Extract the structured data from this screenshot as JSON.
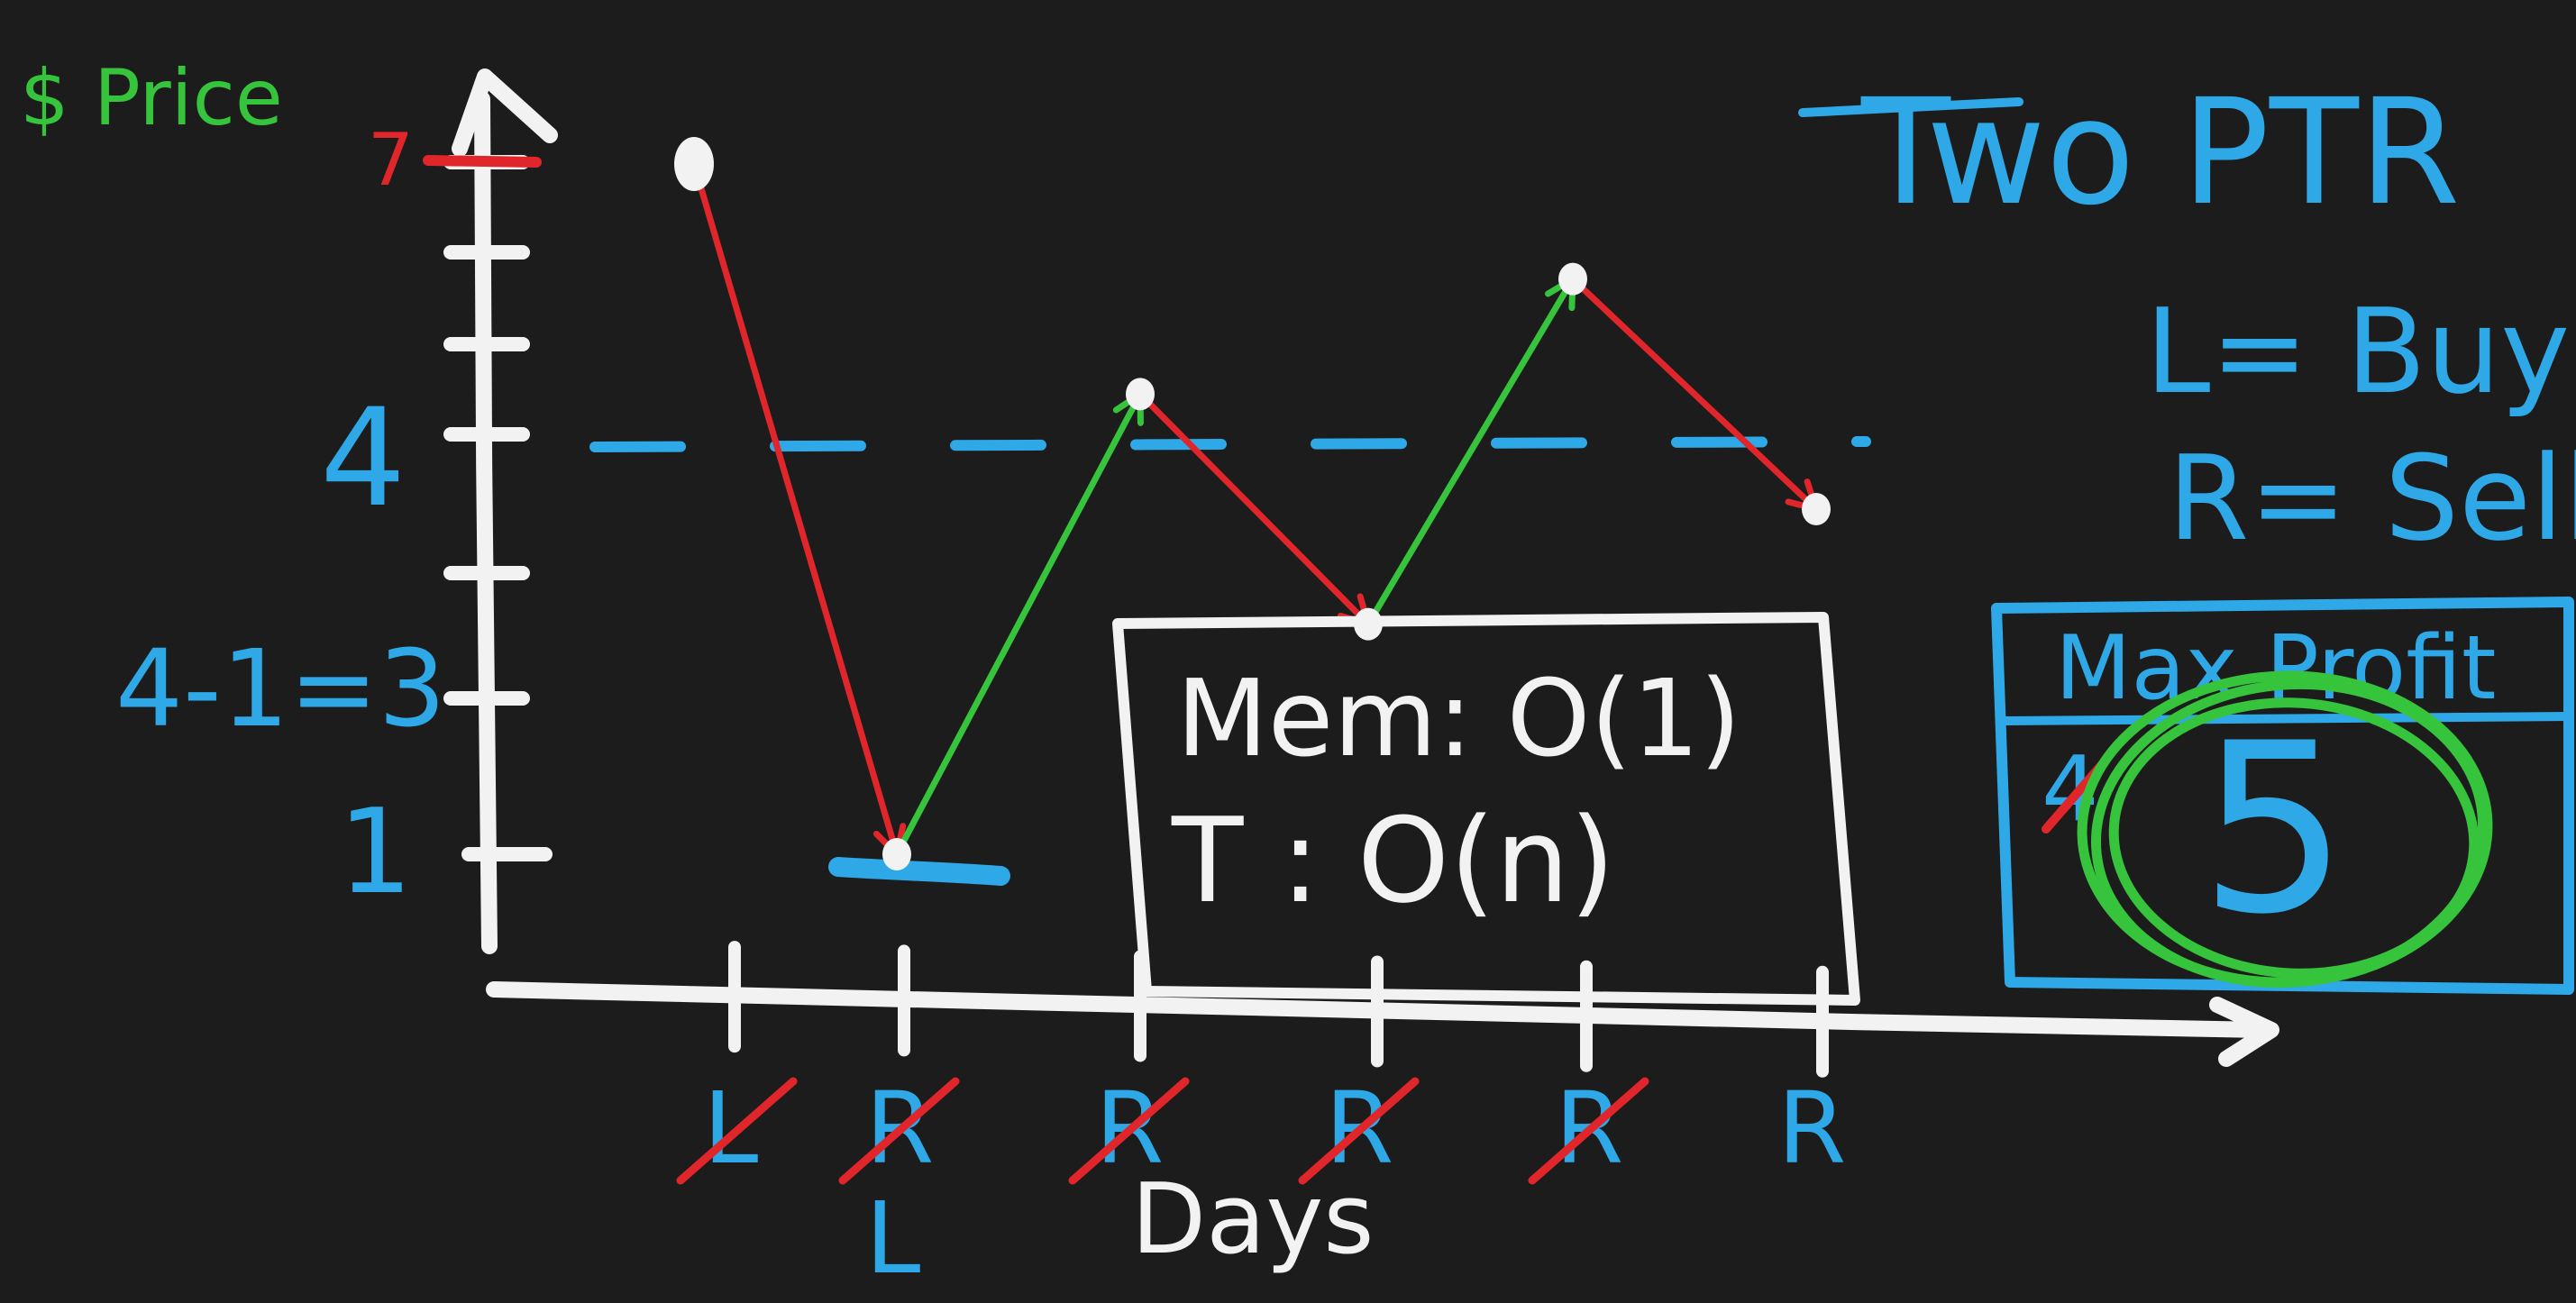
{
  "colors": {
    "background": "#1c1c1c",
    "white": "#f2f2f2",
    "blue": "#2ea8e6",
    "green": "#35c43b",
    "red": "#e0262a"
  },
  "axis": {
    "y_label": "$ Price",
    "x_label": "Days",
    "y_marks": [
      "7",
      "4",
      "4-1=3",
      "1"
    ]
  },
  "title": "Two PTR",
  "legend": {
    "l": "L= Buy",
    "r": "R= Sell"
  },
  "complexity": {
    "memory": "Mem: O(1)",
    "time": "T : O(n)"
  },
  "max_profit": {
    "header": "Max Profit",
    "old_value": "4",
    "value": "5"
  },
  "day_pointers": [
    {
      "label": "L",
      "crossed": true
    },
    {
      "label": "R",
      "crossed": true,
      "sub_label": "L"
    },
    {
      "label": "R",
      "crossed": true
    },
    {
      "label": "R",
      "crossed": true
    },
    {
      "label": "R",
      "crossed": true
    },
    {
      "label": "R",
      "crossed": false
    }
  ],
  "chart_data": {
    "type": "line",
    "x": [
      1,
      2,
      3,
      4,
      5,
      6
    ],
    "prices": [
      7,
      1,
      5,
      3,
      6,
      4
    ],
    "segment_colors": [
      "red",
      "green",
      "red",
      "green",
      "red"
    ],
    "reference_level": 4,
    "ylabel": "$ Price",
    "xlabel": "Days"
  }
}
